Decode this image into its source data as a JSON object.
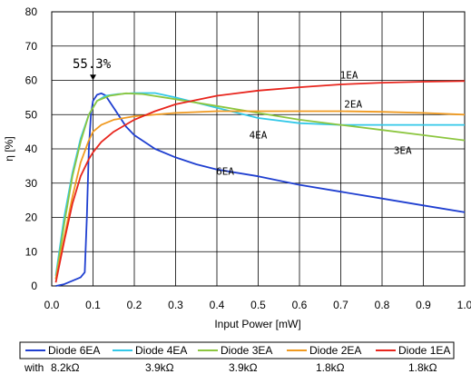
{
  "chart_data": {
    "type": "line",
    "xlabel": "Input Power [mW]",
    "ylabel": "η [%]",
    "xlim": [
      0,
      1.0
    ],
    "ylim": [
      0,
      80
    ],
    "x_ticks": [
      "0.0",
      "0.1",
      "0.2",
      "0.3",
      "0.4",
      "0.5",
      "0.6",
      "0.7",
      "0.8",
      "0.9",
      "1.0"
    ],
    "y_ticks": [
      "0",
      "10",
      "20",
      "30",
      "40",
      "50",
      "60",
      "70",
      "80"
    ],
    "grid": true,
    "peak_annotation": {
      "text": "55.3%",
      "x": 0.1,
      "y": 55.3
    },
    "legend_position": "bottom",
    "resistance_prefix": "with",
    "series": [
      {
        "name": "Diode 6EA",
        "label": "6EA",
        "resistance": "8.2kΩ",
        "color": "#1f3fd0",
        "points": [
          [
            0.01,
            0
          ],
          [
            0.03,
            0.5
          ],
          [
            0.05,
            1.5
          ],
          [
            0.07,
            2.5
          ],
          [
            0.08,
            4
          ],
          [
            0.085,
            20
          ],
          [
            0.09,
            40
          ],
          [
            0.095,
            50
          ],
          [
            0.1,
            54
          ],
          [
            0.11,
            55.8
          ],
          [
            0.12,
            56.2
          ],
          [
            0.13,
            55.6
          ],
          [
            0.15,
            52
          ],
          [
            0.18,
            46.5
          ],
          [
            0.2,
            44
          ],
          [
            0.25,
            40
          ],
          [
            0.3,
            37.5
          ],
          [
            0.35,
            35.5
          ],
          [
            0.4,
            34
          ],
          [
            0.5,
            32
          ],
          [
            0.6,
            29.5
          ],
          [
            0.7,
            27.5
          ],
          [
            0.8,
            25.5
          ],
          [
            0.9,
            23.5
          ],
          [
            1.0,
            21.5
          ]
        ]
      },
      {
        "name": "Diode 4EA",
        "label": "4EA",
        "resistance": "3.9kΩ",
        "color": "#33c8e8",
        "points": [
          [
            0.01,
            3
          ],
          [
            0.03,
            20
          ],
          [
            0.05,
            33
          ],
          [
            0.07,
            43
          ],
          [
            0.09,
            50
          ],
          [
            0.11,
            54
          ],
          [
            0.13,
            55.5
          ],
          [
            0.16,
            56
          ],
          [
            0.2,
            56.3
          ],
          [
            0.25,
            56.3
          ],
          [
            0.3,
            55
          ],
          [
            0.4,
            52
          ],
          [
            0.5,
            49
          ],
          [
            0.6,
            47.5
          ],
          [
            0.7,
            47
          ],
          [
            0.8,
            47
          ],
          [
            0.9,
            47
          ],
          [
            1.0,
            47
          ]
        ]
      },
      {
        "name": "Diode 3EA",
        "label": "3EA",
        "resistance": "3.9kΩ",
        "color": "#8cc63f",
        "points": [
          [
            0.01,
            2
          ],
          [
            0.03,
            18
          ],
          [
            0.05,
            32
          ],
          [
            0.07,
            42
          ],
          [
            0.09,
            50
          ],
          [
            0.11,
            54
          ],
          [
            0.14,
            55.5
          ],
          [
            0.18,
            56.2
          ],
          [
            0.22,
            56
          ],
          [
            0.3,
            54.5
          ],
          [
            0.4,
            52.5
          ],
          [
            0.5,
            50.5
          ],
          [
            0.6,
            48.5
          ],
          [
            0.7,
            47
          ],
          [
            0.8,
            45.5
          ],
          [
            0.9,
            44
          ],
          [
            1.0,
            42.5
          ]
        ]
      },
      {
        "name": "Diode 2EA",
        "label": "2EA",
        "resistance": "1.8kΩ",
        "color": "#f09a20",
        "points": [
          [
            0.01,
            2
          ],
          [
            0.03,
            14
          ],
          [
            0.05,
            26
          ],
          [
            0.07,
            36
          ],
          [
            0.09,
            42.5
          ],
          [
            0.1,
            45
          ],
          [
            0.12,
            47
          ],
          [
            0.15,
            48.5
          ],
          [
            0.2,
            49.5
          ],
          [
            0.3,
            50.5
          ],
          [
            0.4,
            51
          ],
          [
            0.5,
            51
          ],
          [
            0.6,
            51
          ],
          [
            0.7,
            51
          ],
          [
            0.8,
            50.8
          ],
          [
            0.9,
            50.5
          ],
          [
            1.0,
            50
          ]
        ]
      },
      {
        "name": "Diode 1EA",
        "label": "1EA",
        "resistance": "1.8kΩ",
        "color": "#e8251d",
        "points": [
          [
            0.01,
            1
          ],
          [
            0.03,
            13
          ],
          [
            0.05,
            24
          ],
          [
            0.07,
            32
          ],
          [
            0.09,
            37
          ],
          [
            0.1,
            39
          ],
          [
            0.12,
            42
          ],
          [
            0.15,
            45
          ],
          [
            0.2,
            48.5
          ],
          [
            0.25,
            51
          ],
          [
            0.3,
            53
          ],
          [
            0.4,
            55.5
          ],
          [
            0.5,
            57
          ],
          [
            0.6,
            58
          ],
          [
            0.7,
            58.8
          ],
          [
            0.8,
            59.3
          ],
          [
            0.9,
            59.6
          ],
          [
            1.0,
            59.8
          ]
        ]
      }
    ]
  }
}
